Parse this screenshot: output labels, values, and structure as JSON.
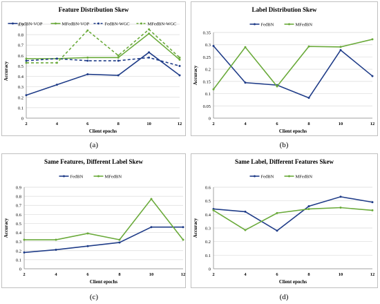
{
  "colors": {
    "blue": "#1f3c88",
    "green": "#6aaa3a",
    "grid": "#d9d9d9",
    "axis": "#8c8c8c"
  },
  "captions": [
    "(a)",
    "(b)",
    "(c)",
    "(d)"
  ],
  "chart_data": [
    {
      "type": "line",
      "title": "Feature Distribution Skew",
      "xlabel": "Client epochs",
      "ylabel": "Accuracy",
      "categories": [
        "2",
        "4",
        "6",
        "8",
        "10",
        "12"
      ],
      "ylim": [
        0,
        0.9
      ],
      "yticks": [
        "0",
        "0.1",
        "0.2",
        "0.3",
        "0.4",
        "0.5",
        "0.6",
        "0.7",
        "0.8",
        "0.9"
      ],
      "grid": true,
      "legend": "top",
      "series": [
        {
          "name": "FedBN-VOP",
          "color": "blue",
          "dash": false,
          "values": [
            0.22,
            0.32,
            0.42,
            0.41,
            0.63,
            0.41
          ]
        },
        {
          "name": "MFedBN-VOP",
          "color": "green",
          "dash": false,
          "values": [
            0.57,
            0.57,
            0.58,
            0.58,
            0.81,
            0.56
          ]
        },
        {
          "name": "FedBN-WGC",
          "color": "blue",
          "dash": true,
          "values": [
            0.55,
            0.57,
            0.55,
            0.55,
            0.58,
            0.5
          ]
        },
        {
          "name": "MFedBN-WGC",
          "color": "green",
          "dash": true,
          "values": [
            0.53,
            0.53,
            0.84,
            0.6,
            0.85,
            0.58
          ]
        }
      ]
    },
    {
      "type": "line",
      "title": "Label Distribution Skew",
      "xlabel": "Client epochs",
      "ylabel": "Accuracy",
      "categories": [
        "2",
        "4",
        "6",
        "8",
        "10",
        "12"
      ],
      "ylim": [
        0,
        0.35
      ],
      "yticks": [
        "0",
        "0.05",
        "0.1",
        "0.15",
        "0.2",
        "0.25",
        "0.3",
        "0.35"
      ],
      "grid": true,
      "legend": "top",
      "series": [
        {
          "name": "FedBN",
          "color": "blue",
          "dash": false,
          "values": [
            0.295,
            0.145,
            0.135,
            0.083,
            0.278,
            0.172
          ]
        },
        {
          "name": "MFedBN",
          "color": "green",
          "dash": false,
          "values": [
            0.118,
            0.29,
            0.13,
            0.293,
            0.291,
            0.322
          ]
        }
      ]
    },
    {
      "type": "line",
      "title": "Same Features, Different Label Skew",
      "xlabel": "Client epochs",
      "ylabel": "Accuracy",
      "categories": [
        "2",
        "4",
        "6",
        "8",
        "10",
        "12"
      ],
      "ylim": [
        0,
        0.9
      ],
      "yticks": [
        "0",
        "0.1",
        "0.2",
        "0.3",
        "0.4",
        "0.5",
        "0.6",
        "0.7",
        "0.8",
        "0.9"
      ],
      "grid": true,
      "legend": "top",
      "series": [
        {
          "name": "FedBN",
          "color": "blue",
          "dash": false,
          "values": [
            0.18,
            0.21,
            0.25,
            0.29,
            0.46,
            0.46
          ]
        },
        {
          "name": "MFedBN",
          "color": "green",
          "dash": false,
          "values": [
            0.32,
            0.32,
            0.39,
            0.32,
            0.77,
            0.32
          ]
        }
      ]
    },
    {
      "type": "line",
      "title": "Same Label, Different Features Skew",
      "xlabel": "Client epochs",
      "ylabel": "Accuracy",
      "categories": [
        "2",
        "4",
        "6",
        "8",
        "10",
        "12"
      ],
      "ylim": [
        0,
        0.6
      ],
      "yticks": [
        "0",
        "0.1",
        "0.2",
        "0.3",
        "0.4",
        "0.5",
        "0.6"
      ],
      "grid": true,
      "legend": "top",
      "series": [
        {
          "name": "FedBN",
          "color": "blue",
          "dash": false,
          "values": [
            0.44,
            0.42,
            0.28,
            0.46,
            0.53,
            0.49
          ]
        },
        {
          "name": "MFedBN",
          "color": "green",
          "dash": false,
          "values": [
            0.43,
            0.285,
            0.41,
            0.44,
            0.45,
            0.43
          ]
        }
      ]
    }
  ]
}
